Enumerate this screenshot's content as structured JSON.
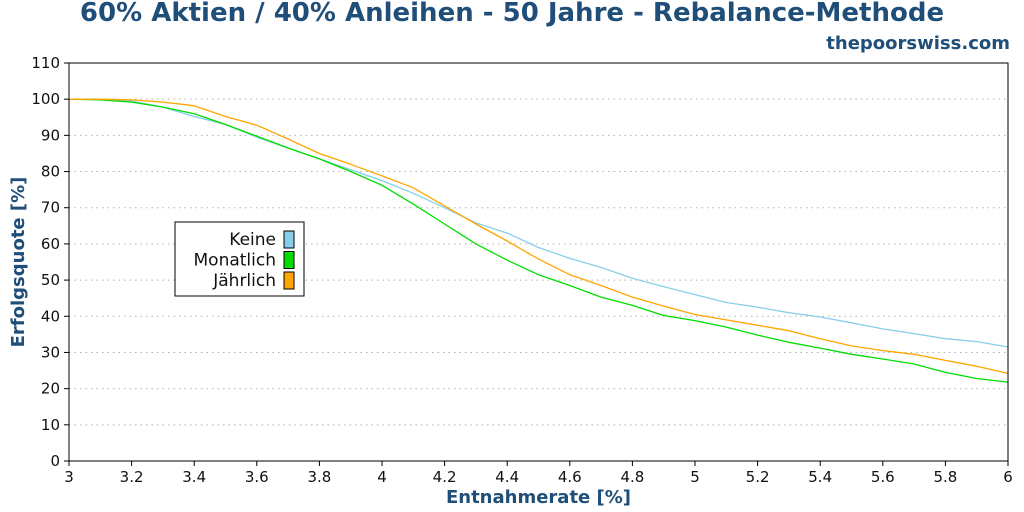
{
  "header": {
    "title": "60% Aktien / 40% Anleihen - 50 Jahre - Rebalance-Methode",
    "site": "thepoorswiss.com"
  },
  "chart_data": {
    "type": "line",
    "xlabel": "Entnahmerate [%]",
    "ylabel": "Erfolgsquote [%]",
    "xlim": [
      3,
      6
    ],
    "ylim": [
      0,
      110
    ],
    "x_ticks": [
      "3",
      "3.2",
      "3.4",
      "3.6",
      "3.8",
      "4",
      "4.2",
      "4.4",
      "4.6",
      "4.8",
      "5",
      "5.2",
      "5.4",
      "5.6",
      "5.8",
      "6"
    ],
    "y_ticks": [
      "0",
      "10",
      "20",
      "30",
      "40",
      "50",
      "60",
      "70",
      "80",
      "90",
      "100",
      "110"
    ],
    "grid": "horizontal-dotted",
    "legend_position": "left",
    "x": [
      3.0,
      3.1,
      3.2,
      3.3,
      3.4,
      3.5,
      3.6,
      3.7,
      3.8,
      3.9,
      4.0,
      4.1,
      4.2,
      4.3,
      4.4,
      4.5,
      4.6,
      4.7,
      4.8,
      4.9,
      5.0,
      5.1,
      5.2,
      5.3,
      5.4,
      5.5,
      5.6,
      5.7,
      5.8,
      5.9,
      6.0
    ],
    "series": [
      {
        "name": "Keine",
        "color": "#87ceeb",
        "values": [
          100,
          100,
          99.5,
          97.8,
          95.2,
          93.0,
          89.5,
          86.5,
          83.5,
          80.5,
          77.5,
          74.0,
          70.0,
          65.8,
          63.0,
          59.0,
          56.0,
          53.5,
          50.5,
          48.2,
          46.0,
          43.8,
          42.5,
          41.0,
          39.8,
          38.2,
          36.5,
          35.2,
          33.8,
          33.0,
          31.5
        ]
      },
      {
        "name": "Monatlich",
        "color": "#00dd00",
        "values": [
          100,
          99.8,
          99.2,
          97.8,
          96.0,
          93.0,
          89.8,
          86.5,
          83.5,
          80.0,
          76.2,
          71.0,
          65.5,
          60.0,
          55.5,
          51.5,
          48.5,
          45.3,
          43.0,
          40.2,
          38.8,
          37.0,
          34.8,
          32.8,
          31.2,
          29.5,
          28.2,
          26.8,
          24.5,
          22.8,
          21.8
        ]
      },
      {
        "name": "Jährlich",
        "color": "#ffa500",
        "values": [
          100,
          100,
          99.8,
          99.2,
          98.2,
          95.2,
          92.8,
          89.0,
          85.0,
          82.0,
          78.8,
          75.5,
          70.5,
          65.5,
          60.8,
          55.8,
          51.5,
          48.5,
          45.3,
          42.8,
          40.5,
          39.0,
          37.5,
          36.0,
          33.8,
          31.8,
          30.5,
          29.5,
          27.8,
          26.2,
          24.2
        ]
      }
    ]
  }
}
